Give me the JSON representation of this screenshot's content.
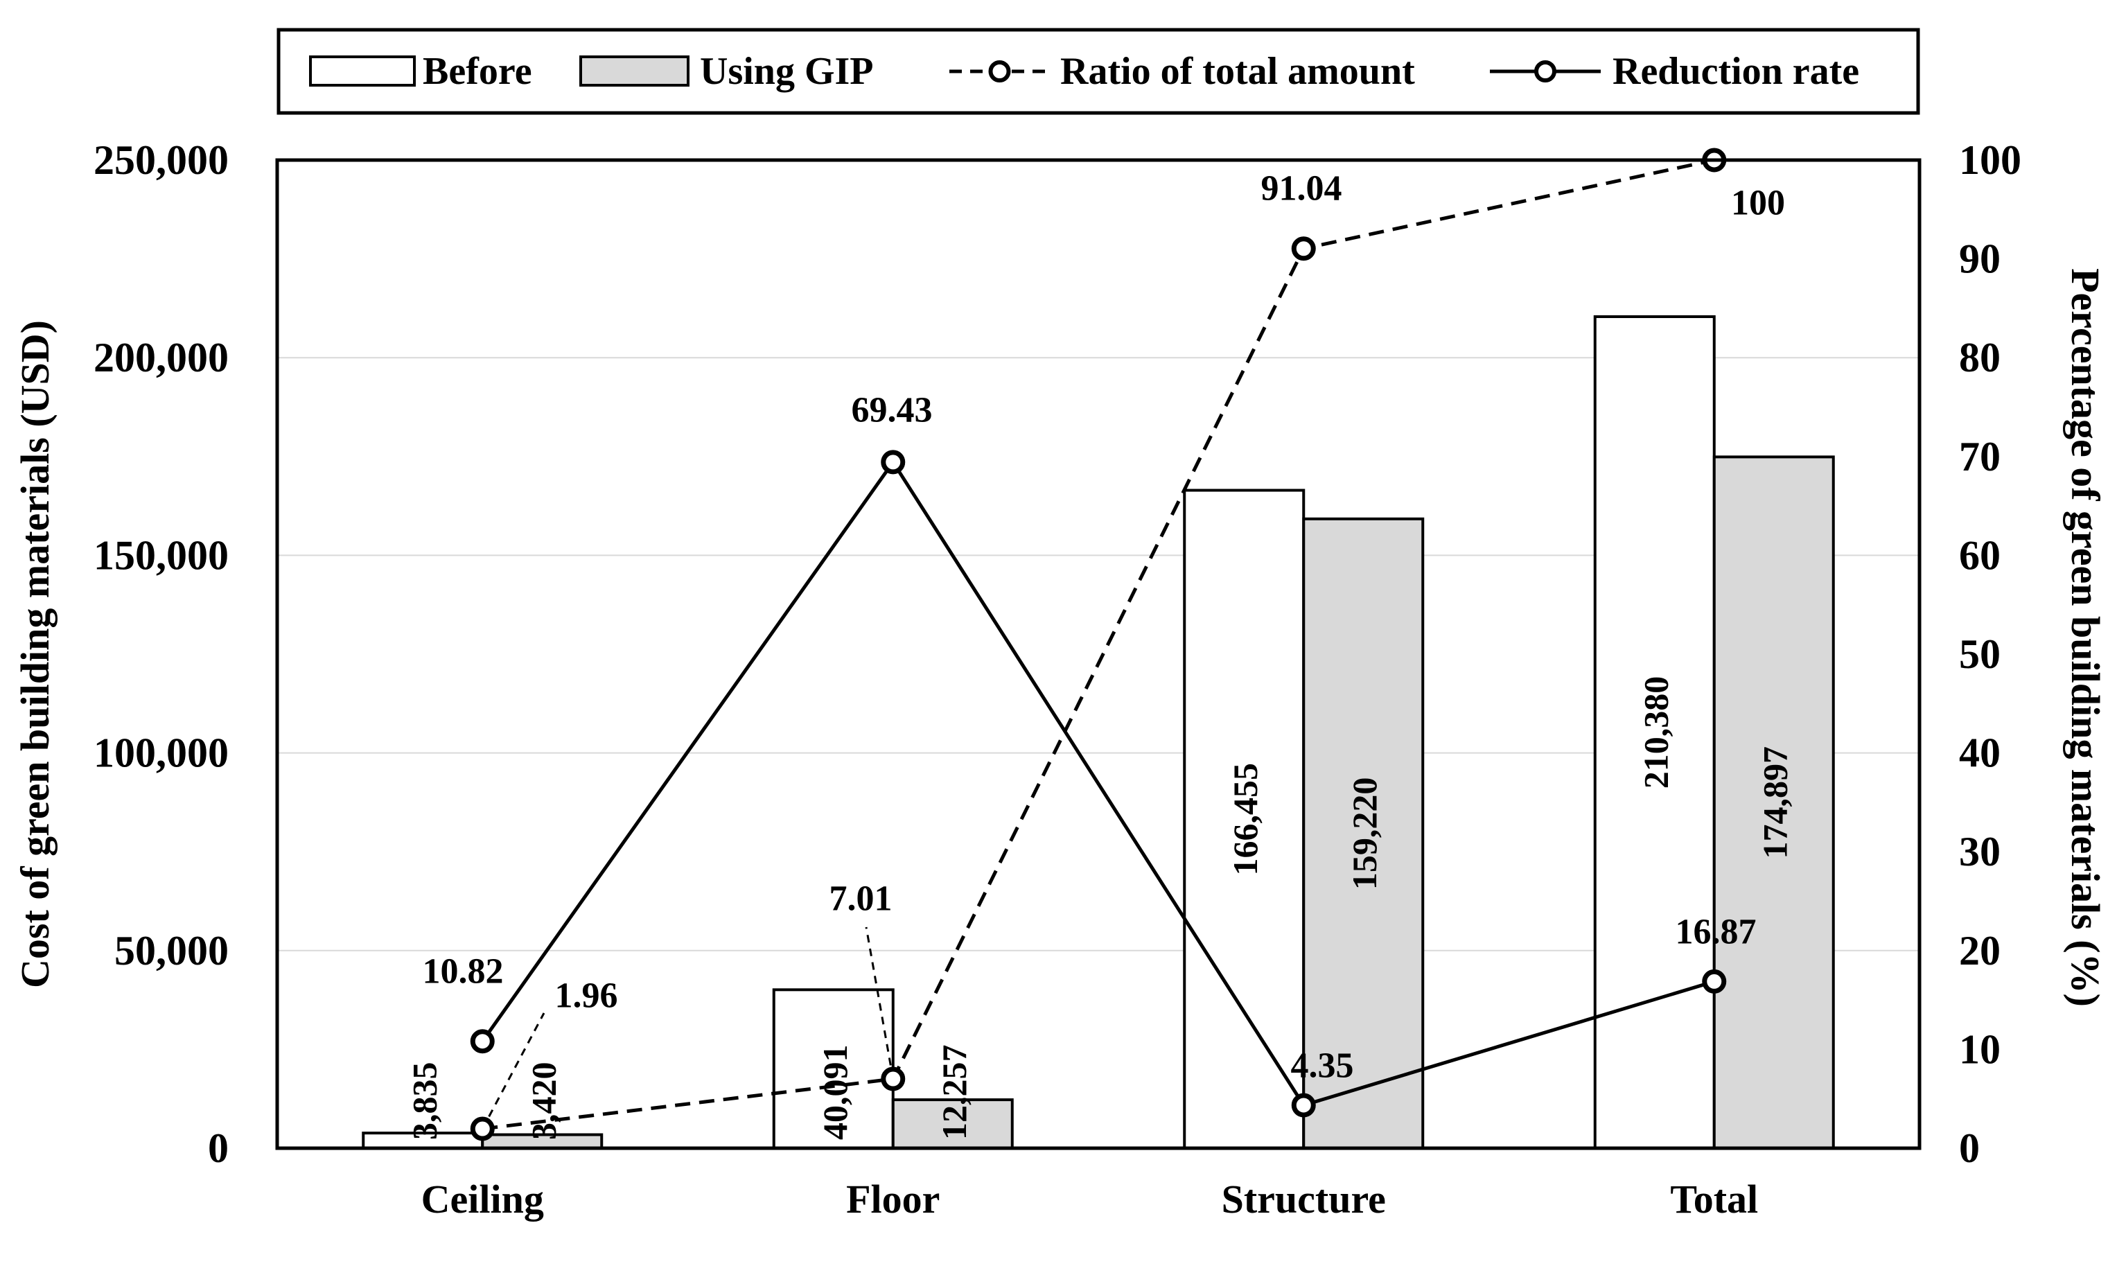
{
  "chart_data": {
    "type": "combo-bar-line",
    "categories": [
      "Ceiling",
      "Floor",
      "Structure",
      "Total"
    ],
    "bar_series": [
      {
        "name": "Before",
        "fill": "#ffffff",
        "values": [
          3835,
          40091,
          166455,
          210380
        ],
        "labels": [
          "3,835",
          "40,091",
          "166,455",
          "210,380"
        ]
      },
      {
        "name": "Using GIP",
        "fill": "#d9d9d9",
        "values": [
          3420,
          12257,
          159220,
          174897
        ],
        "labels": [
          "3,420",
          "12,257",
          "159,220",
          "174,897"
        ]
      }
    ],
    "line_series": [
      {
        "name": "Ratio of total amount",
        "style": "dashed",
        "axis": "right",
        "values": [
          1.96,
          7.01,
          91.04,
          100
        ],
        "labels": [
          "1.96",
          "7.01",
          "91.04",
          "100"
        ]
      },
      {
        "name": "Reduction rate",
        "style": "solid",
        "axis": "right",
        "values": [
          10.82,
          69.43,
          4.35,
          16.87
        ],
        "labels": [
          "10.82",
          "69.43",
          "4.35",
          "16.87"
        ]
      }
    ],
    "left_axis": {
      "title": "Cost of green building materials (USD)",
      "min": 0,
      "max": 250000,
      "ticks": [
        {
          "value": 0,
          "label": "0"
        },
        {
          "value": 50000,
          "label": "50,000"
        },
        {
          "value": 100000,
          "label": "100,000"
        },
        {
          "value": 150000,
          "label": "150,000"
        },
        {
          "value": 200000,
          "label": "200,000"
        },
        {
          "value": 250000,
          "label": "250,000"
        }
      ]
    },
    "right_axis": {
      "title": "Percentage of green building materials (%)",
      "min": 0,
      "max": 100,
      "ticks": [
        {
          "value": 0,
          "label": "0"
        },
        {
          "value": 10,
          "label": "10"
        },
        {
          "value": 20,
          "label": "20"
        },
        {
          "value": 30,
          "label": "30"
        },
        {
          "value": 40,
          "label": "40"
        },
        {
          "value": 50,
          "label": "50"
        },
        {
          "value": 60,
          "label": "60"
        },
        {
          "value": 70,
          "label": "70"
        },
        {
          "value": 80,
          "label": "80"
        },
        {
          "value": 90,
          "label": "90"
        },
        {
          "value": 100,
          "label": "100"
        }
      ]
    },
    "legend": [
      {
        "label": "Before",
        "type": "bar",
        "fill": "#ffffff"
      },
      {
        "label": "Using GIP",
        "type": "bar",
        "fill": "#d9d9d9"
      },
      {
        "label": "Ratio of total amount",
        "type": "line-dashed"
      },
      {
        "label": "Reduction rate",
        "type": "line-solid"
      }
    ],
    "layout_hints": {
      "grid": "horizontal gridlines at every 50,000 of left axis",
      "legend_position": "top"
    },
    "colors": {
      "stroke": "#000000",
      "grid": "#d9d9d9",
      "gip_fill": "#d9d9d9",
      "background": "#ffffff"
    }
  }
}
